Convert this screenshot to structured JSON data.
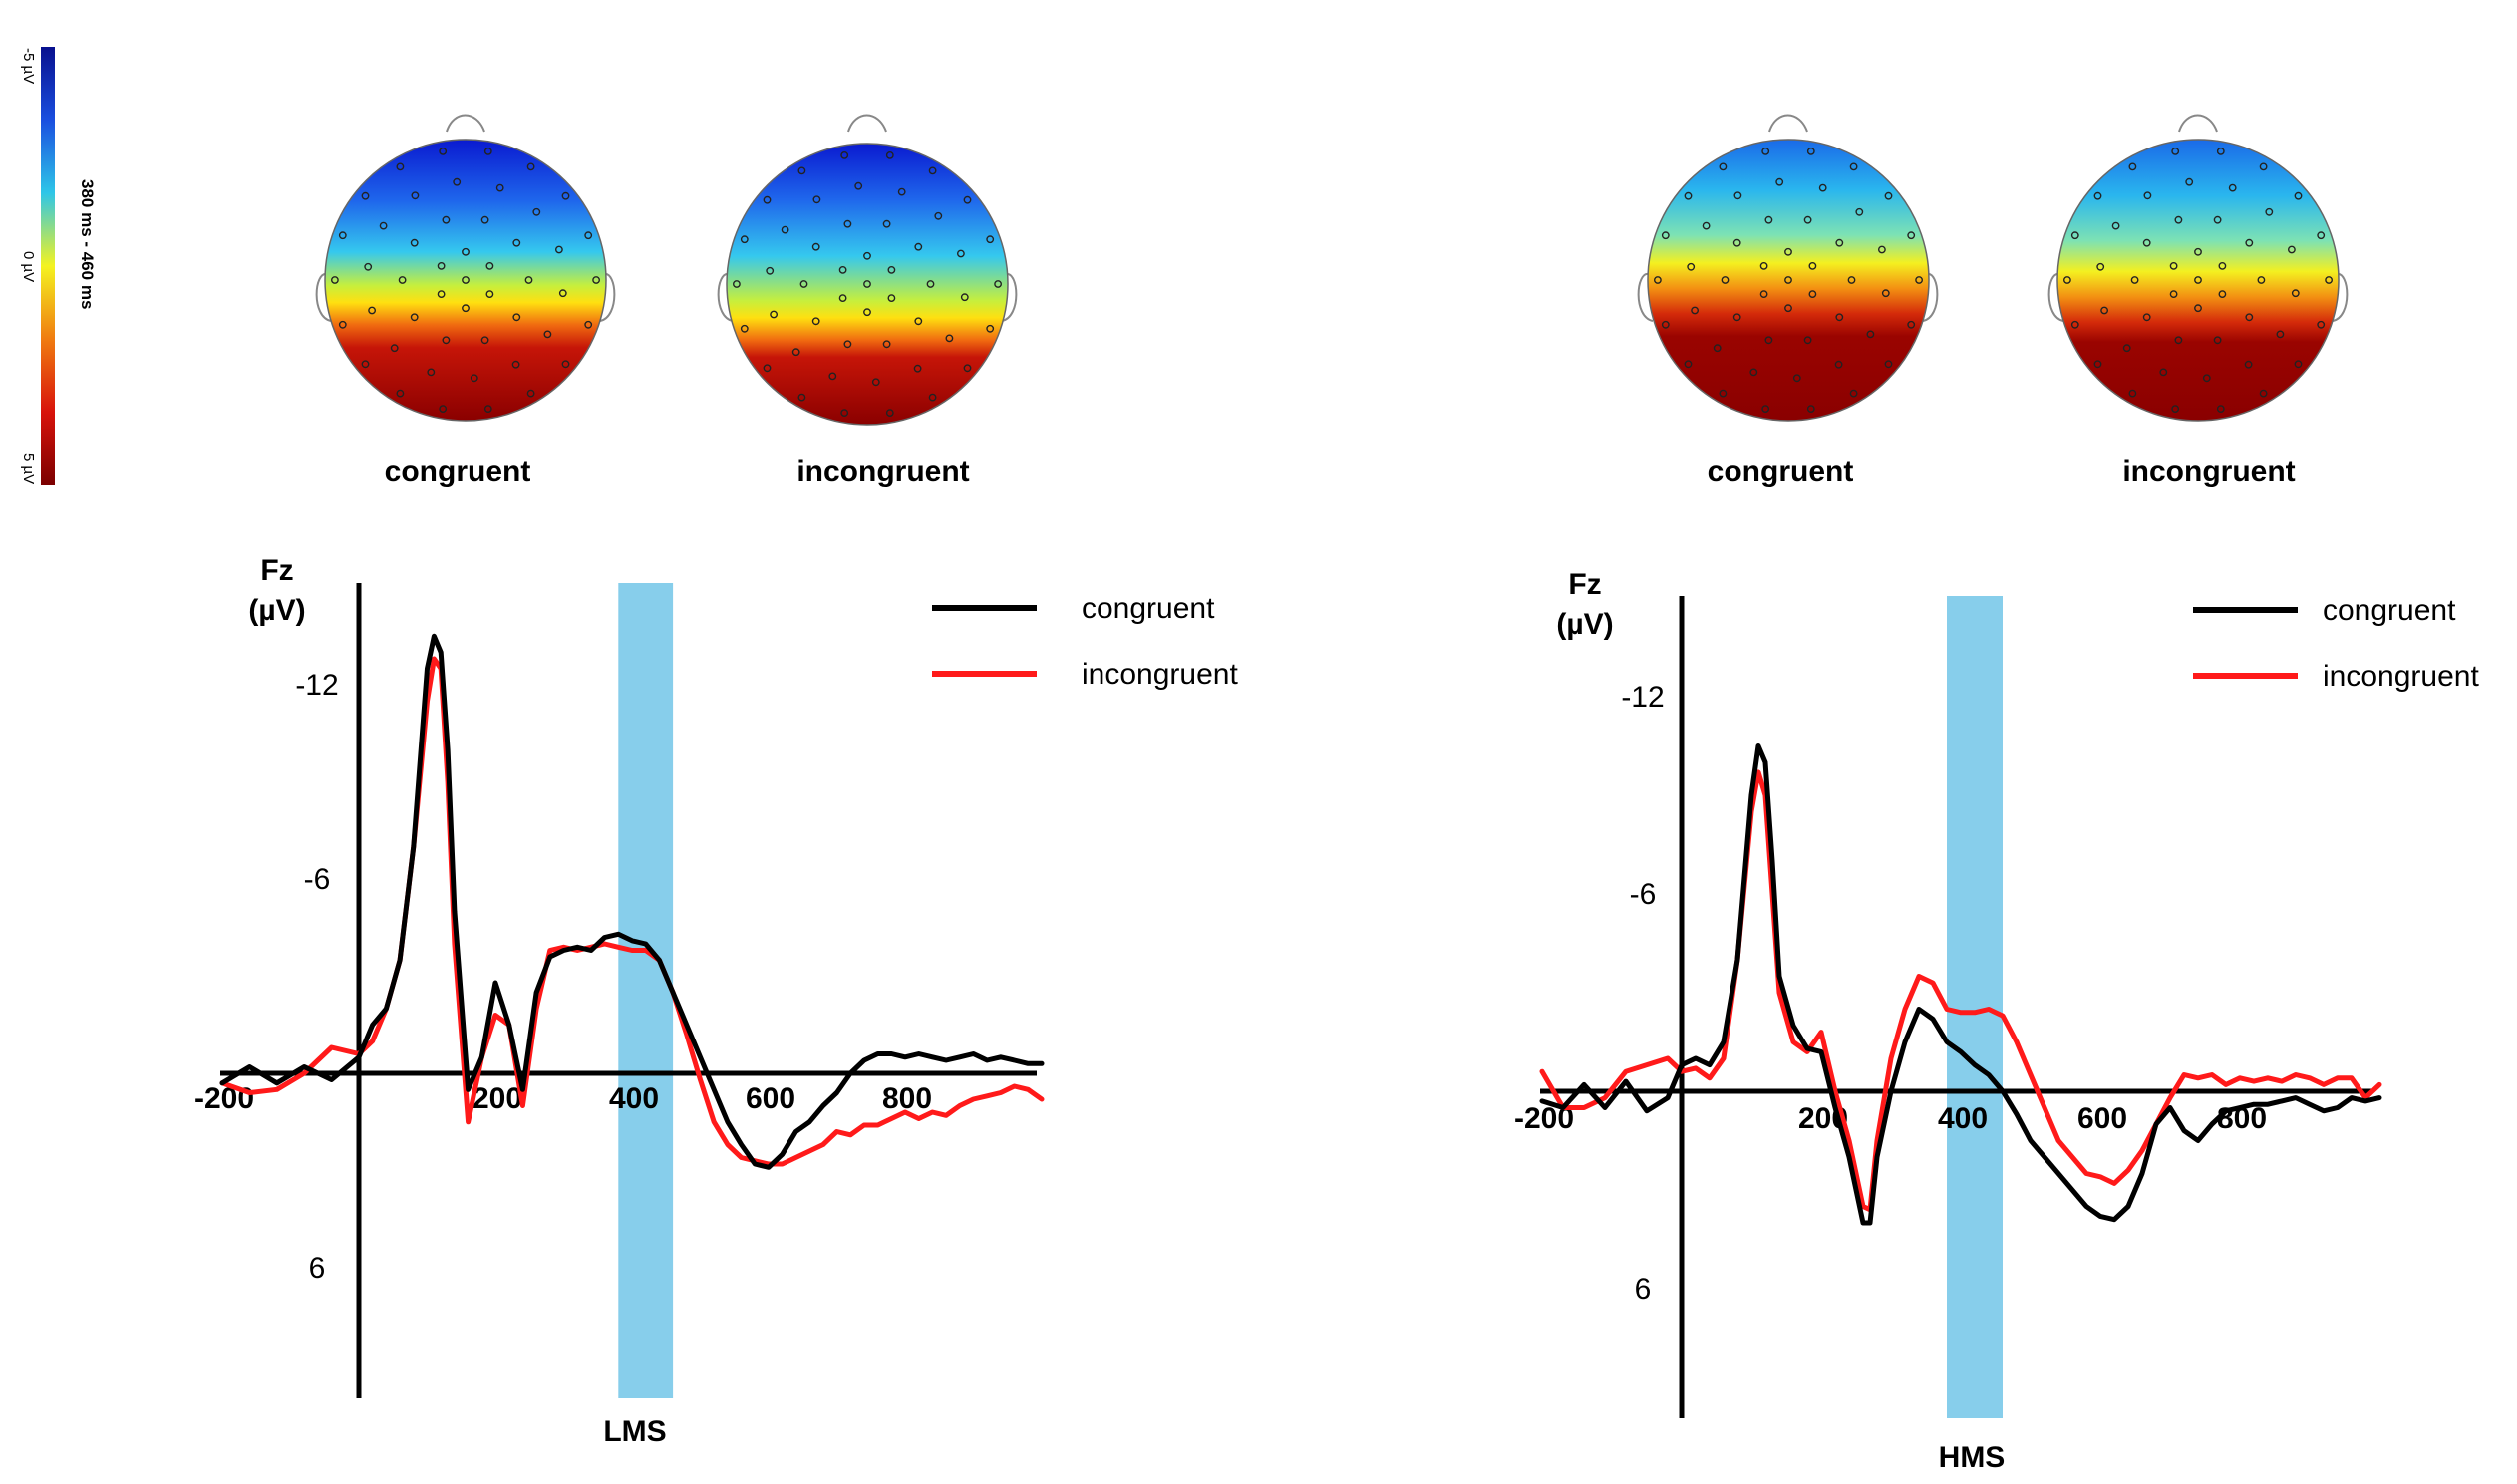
{
  "colorbar": {
    "top_label": "-5 µV",
    "mid_label": "0 µV",
    "bottom_label": "5 µV",
    "window_label": "380 ms - 460 ms",
    "stops": [
      "#08108e",
      "#1a4fe0",
      "#2ec6e8",
      "#f4f320",
      "#f07b10",
      "#d8130b",
      "#7b0000"
    ]
  },
  "colors": {
    "congruent": "#000000",
    "incongruent": "#ff1a1a",
    "window": "#87ceeb"
  },
  "chart_data": [
    {
      "type": "line",
      "panel": "LMS",
      "panel_label": "LMS",
      "topomap_labels": [
        "congruent",
        "incongruent"
      ],
      "channel_label": "Fz",
      "unit_label": "(µV)",
      "axis_inverted": true,
      "xlim": [
        -200,
        1000
      ],
      "ylim": [
        -15,
        10
      ],
      "x_ticks": [
        -200,
        200,
        400,
        600,
        800
      ],
      "y_ticks": [
        -12,
        -6,
        6
      ],
      "highlight_window": [
        380,
        460
      ],
      "legend": [
        "congruent",
        "incongruent"
      ],
      "series": [
        {
          "name": "congruent",
          "x": [
            -200,
            -160,
            -120,
            -80,
            -40,
            0,
            20,
            40,
            60,
            80,
            100,
            110,
            120,
            130,
            140,
            160,
            180,
            200,
            220,
            240,
            260,
            280,
            300,
            320,
            340,
            360,
            380,
            400,
            420,
            440,
            460,
            480,
            500,
            520,
            540,
            560,
            580,
            600,
            620,
            640,
            660,
            680,
            700,
            720,
            740,
            760,
            780,
            800,
            820,
            840,
            860,
            880,
            900,
            920,
            940,
            960,
            980,
            1000
          ],
          "y": [
            0.3,
            -0.2,
            0.3,
            -0.2,
            0.2,
            -0.5,
            -1.5,
            -2,
            -3.5,
            -7,
            -12.5,
            -13.5,
            -13,
            -10,
            -5,
            0.5,
            -0.5,
            -2.8,
            -1.5,
            0.5,
            -2.5,
            -3.6,
            -3.8,
            -3.9,
            -3.8,
            -4.2,
            -4.3,
            -4.1,
            -4,
            -3.5,
            -2.5,
            -1.5,
            -0.5,
            0.5,
            1.5,
            2.2,
            2.8,
            2.9,
            2.5,
            1.8,
            1.5,
            1,
            0.6,
            0,
            -0.4,
            -0.6,
            -0.6,
            -0.5,
            -0.6,
            -0.5,
            -0.4,
            -0.5,
            -0.6,
            -0.4,
            -0.5,
            -0.4,
            -0.3,
            -0.3
          ]
        },
        {
          "name": "incongruent",
          "x": [
            -200,
            -160,
            -120,
            -80,
            -40,
            0,
            20,
            40,
            60,
            80,
            100,
            110,
            120,
            130,
            140,
            160,
            180,
            200,
            220,
            240,
            260,
            280,
            300,
            320,
            340,
            360,
            380,
            400,
            420,
            440,
            460,
            480,
            500,
            520,
            540,
            560,
            580,
            600,
            620,
            640,
            660,
            680,
            700,
            720,
            740,
            760,
            780,
            800,
            820,
            840,
            860,
            880,
            900,
            920,
            940,
            960,
            980,
            1000
          ],
          "y": [
            0.3,
            0.6,
            0.5,
            0,
            -0.8,
            -0.6,
            -1,
            -2,
            -3.5,
            -7,
            -11.5,
            -12.8,
            -12.5,
            -9,
            -4,
            1.5,
            -0.5,
            -1.8,
            -1.5,
            1,
            -2,
            -3.8,
            -3.9,
            -3.8,
            -3.9,
            -4,
            -3.9,
            -3.8,
            -3.8,
            -3.5,
            -2.5,
            -1.2,
            0.2,
            1.5,
            2.2,
            2.6,
            2.7,
            2.8,
            2.8,
            2.6,
            2.4,
            2.2,
            1.8,
            1.9,
            1.6,
            1.6,
            1.4,
            1.2,
            1.4,
            1.2,
            1.3,
            1,
            0.8,
            0.7,
            0.6,
            0.4,
            0.5,
            0.8
          ]
        }
      ]
    },
    {
      "type": "line",
      "panel": "HMS",
      "panel_label": "HMS",
      "topomap_labels": [
        "congruent",
        "incongruent"
      ],
      "channel_label": "Fz",
      "unit_label": "(µV)",
      "axis_inverted": true,
      "xlim": [
        -200,
        1000
      ],
      "ylim": [
        -15,
        10
      ],
      "x_ticks": [
        -200,
        200,
        400,
        600,
        800
      ],
      "y_ticks": [
        -12,
        -6,
        6
      ],
      "highlight_window": [
        380,
        460
      ],
      "legend": [
        "congruent",
        "incongruent"
      ],
      "series": [
        {
          "name": "congruent",
          "x": [
            -200,
            -170,
            -140,
            -110,
            -80,
            -50,
            -20,
            0,
            20,
            40,
            60,
            80,
            100,
            110,
            120,
            130,
            140,
            160,
            180,
            200,
            220,
            240,
            260,
            270,
            280,
            300,
            320,
            340,
            360,
            380,
            400,
            420,
            440,
            460,
            480,
            500,
            520,
            540,
            560,
            580,
            600,
            620,
            640,
            660,
            680,
            700,
            720,
            740,
            760,
            780,
            800,
            820,
            840,
            860,
            880,
            900,
            920,
            940,
            960,
            980,
            1000
          ],
          "y": [
            0.3,
            0.5,
            -0.2,
            0.5,
            -0.3,
            0.6,
            0.2,
            -0.8,
            -1,
            -0.8,
            -1.5,
            -4,
            -9,
            -10.5,
            -10,
            -7,
            -3.5,
            -2,
            -1.3,
            -1.2,
            0.5,
            2,
            4,
            4,
            2,
            0,
            -1.5,
            -2.5,
            -2.2,
            -1.5,
            -1.2,
            -0.8,
            -0.5,
            0,
            0.7,
            1.5,
            2,
            2.5,
            3,
            3.5,
            3.8,
            3.9,
            3.5,
            2.5,
            1,
            0.5,
            1.2,
            1.5,
            1,
            0.6,
            0.5,
            0.4,
            0.4,
            0.3,
            0.2,
            0.4,
            0.6,
            0.5,
            0.2,
            0.3,
            0.2
          ]
        },
        {
          "name": "incongruent",
          "x": [
            -200,
            -170,
            -140,
            -110,
            -80,
            -50,
            -20,
            0,
            20,
            40,
            60,
            80,
            100,
            110,
            120,
            130,
            140,
            160,
            180,
            200,
            220,
            240,
            260,
            270,
            280,
            300,
            320,
            340,
            360,
            380,
            400,
            420,
            440,
            460,
            480,
            500,
            520,
            540,
            560,
            580,
            600,
            620,
            640,
            660,
            680,
            700,
            720,
            740,
            760,
            780,
            800,
            820,
            840,
            860,
            880,
            900,
            920,
            940,
            960,
            980,
            1000
          ],
          "y": [
            -0.6,
            0.5,
            0.5,
            0.2,
            -0.6,
            -0.8,
            -1,
            -0.6,
            -0.7,
            -0.4,
            -1,
            -4,
            -8.5,
            -9.7,
            -9,
            -6,
            -3,
            -1.5,
            -1.2,
            -1.8,
            0,
            1.5,
            3.5,
            3.6,
            1.5,
            -1,
            -2.5,
            -3.5,
            -3.3,
            -2.5,
            -2.4,
            -2.4,
            -2.5,
            -2.3,
            -1.5,
            -0.5,
            0.5,
            1.5,
            2,
            2.5,
            2.6,
            2.8,
            2.4,
            1.8,
            1,
            0.2,
            -0.5,
            -0.4,
            -0.5,
            -0.2,
            -0.4,
            -0.3,
            -0.4,
            -0.3,
            -0.5,
            -0.4,
            -0.2,
            -0.4,
            -0.4,
            0.2,
            -0.2
          ]
        }
      ]
    }
  ]
}
